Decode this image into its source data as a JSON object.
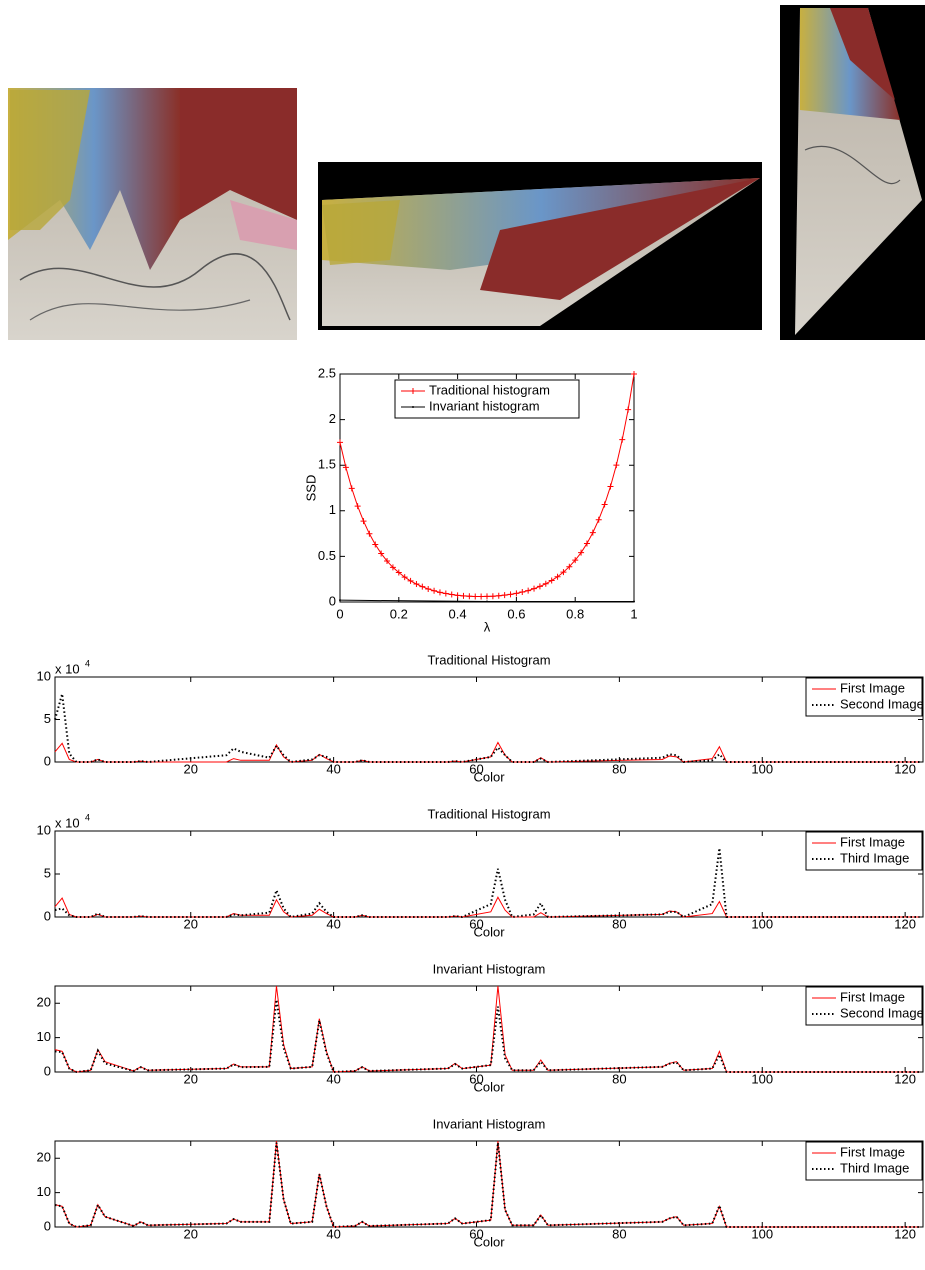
{
  "chart_data": [
    {
      "type": "line",
      "xlabel": "λ",
      "ylabel": "SSD",
      "legend": "upper center",
      "xlim": [
        0,
        1
      ],
      "ylim": [
        0,
        2.5
      ],
      "xticks": [
        0,
        0.2,
        0.4,
        0.6,
        0.8,
        1
      ],
      "yticks": [
        0,
        0.5,
        1,
        1.5,
        2,
        2.5
      ],
      "x": [
        0,
        0.02,
        0.04,
        0.06,
        0.08,
        0.1,
        0.12,
        0.14,
        0.16,
        0.18,
        0.2,
        0.22,
        0.24,
        0.26,
        0.28,
        0.3,
        0.32,
        0.34,
        0.36,
        0.38,
        0.4,
        0.42,
        0.44,
        0.46,
        0.48,
        0.5,
        0.52,
        0.54,
        0.56,
        0.58,
        0.6,
        0.62,
        0.64,
        0.66,
        0.68,
        0.7,
        0.72,
        0.74,
        0.76,
        0.78,
        0.8,
        0.82,
        0.84,
        0.86,
        0.88,
        0.9,
        0.92,
        0.94,
        0.96,
        0.98,
        1
      ],
      "series": [
        {
          "name": "Traditional histogram",
          "color": "#ff0000",
          "marker": "+",
          "linestyle": "-",
          "values": [
            1.75,
            1.476,
            1.246,
            1.051,
            0.887,
            0.748,
            0.631,
            0.532,
            0.449,
            0.379,
            0.323,
            0.273,
            0.231,
            0.197,
            0.168,
            0.143,
            0.123,
            0.106,
            0.093,
            0.082,
            0.073,
            0.067,
            0.063,
            0.06,
            0.06,
            0.061,
            0.063,
            0.068,
            0.075,
            0.084,
            0.095,
            0.109,
            0.125,
            0.146,
            0.171,
            0.2,
            0.236,
            0.277,
            0.328,
            0.387,
            0.459,
            0.541,
            0.642,
            0.761,
            0.902,
            1.069,
            1.267,
            1.501,
            1.78,
            2.109,
            2.5
          ]
        },
        {
          "name": "Invariant histogram",
          "color": "#000000",
          "marker": ".",
          "linestyle": "-",
          "x": [
            0,
            0.5,
            1
          ],
          "values": [
            0.02,
            0.005,
            0.005
          ]
        }
      ]
    },
    {
      "type": "line",
      "title": "Traditional Histogram",
      "xlabel": "Color",
      "legend": "upper right",
      "y_multiplier": "x 10",
      "y_multiplier_exponent": 4,
      "xlim": [
        1,
        122.5
      ],
      "ylim": [
        0,
        10
      ],
      "xticks": [
        20,
        40,
        60,
        80,
        100,
        120
      ],
      "yticks": [
        0,
        5,
        10
      ],
      "x": [
        1,
        2,
        3,
        4,
        6,
        7,
        8,
        12,
        13,
        14,
        25,
        26,
        27,
        31,
        32,
        33,
        34,
        37,
        38,
        39,
        40,
        43,
        44,
        45,
        56,
        57,
        58,
        62,
        63,
        64,
        65,
        68,
        69,
        70,
        86,
        87,
        88,
        89,
        93,
        94,
        95,
        122
      ],
      "series": [
        {
          "name": "First Image",
          "color": "#ff0000",
          "linestyle": "-",
          "values": [
            1.2,
            2.2,
            0.3,
            0,
            0,
            0.3,
            0,
            0,
            0.1,
            0,
            0,
            0.4,
            0.2,
            0.2,
            2.0,
            0.6,
            0,
            0.2,
            0.9,
            0.4,
            0,
            0,
            0.2,
            0,
            0,
            0.1,
            0,
            0.6,
            2.3,
            0.8,
            0,
            0,
            0.5,
            0,
            0.3,
            0.7,
            0.6,
            0,
            0.4,
            1.8,
            0,
            0
          ]
        },
        {
          "name": "Second Image",
          "color": "#000000",
          "linestyle": ":",
          "values": [
            5,
            8,
            1,
            0,
            0,
            0.3,
            0,
            0,
            0.1,
            0,
            0.8,
            1.6,
            1.2,
            0.5,
            1.9,
            0.8,
            0,
            0.3,
            0.8,
            0.6,
            0,
            0,
            0.2,
            0,
            0,
            0.1,
            0,
            0.6,
            1.7,
            0.8,
            0,
            0,
            0.4,
            0,
            0.5,
            0.9,
            0.8,
            0,
            0.2,
            0.9,
            0,
            0
          ]
        }
      ]
    },
    {
      "type": "line",
      "title": "Traditional Histogram",
      "xlabel": "Color",
      "legend": "upper right",
      "y_multiplier": "x 10",
      "y_multiplier_exponent": 4,
      "xlim": [
        1,
        122.5
      ],
      "ylim": [
        0,
        10
      ],
      "xticks": [
        20,
        40,
        60,
        80,
        100,
        120
      ],
      "yticks": [
        0,
        5,
        10
      ],
      "x": [
        1,
        2,
        3,
        4,
        6,
        7,
        8,
        12,
        13,
        14,
        25,
        26,
        27,
        31,
        32,
        33,
        34,
        37,
        38,
        39,
        40,
        43,
        44,
        45,
        56,
        57,
        58,
        62,
        63,
        64,
        65,
        68,
        69,
        70,
        86,
        87,
        88,
        89,
        93,
        94,
        95,
        122
      ],
      "series": [
        {
          "name": "First Image",
          "color": "#ff0000",
          "linestyle": "-",
          "values": [
            1.2,
            2.2,
            0.3,
            0,
            0,
            0.3,
            0,
            0,
            0.1,
            0,
            0,
            0.4,
            0.2,
            0.2,
            2.0,
            0.6,
            0,
            0.2,
            0.9,
            0.4,
            0,
            0,
            0.2,
            0,
            0,
            0.1,
            0,
            0.6,
            2.3,
            0.8,
            0,
            0,
            0.5,
            0,
            0.3,
            0.7,
            0.6,
            0,
            0.4,
            1.8,
            0,
            0
          ]
        },
        {
          "name": "Third Image",
          "color": "#000000",
          "linestyle": ":",
          "values": [
            0.8,
            1.0,
            0.2,
            0,
            0,
            0.4,
            0,
            0,
            0.1,
            0,
            0,
            0.3,
            0.2,
            0.5,
            3.1,
            1.0,
            0,
            0.4,
            1.6,
            0.6,
            0,
            0,
            0.2,
            0,
            0,
            0.1,
            0,
            1.5,
            5.6,
            2.0,
            0,
            0.3,
            1.6,
            0,
            0.3,
            0.6,
            0.6,
            0,
            1.5,
            8.0,
            0,
            0
          ]
        }
      ]
    },
    {
      "type": "line",
      "title": "Invariant Histogram",
      "xlabel": "Color",
      "legend": "upper right",
      "xlim": [
        1,
        122.5
      ],
      "ylim": [
        0,
        25
      ],
      "xticks": [
        20,
        40,
        60,
        80,
        100,
        120
      ],
      "yticks": [
        0,
        10,
        20
      ],
      "x": [
        1,
        2,
        3,
        4,
        6,
        7,
        8,
        12,
        13,
        14,
        25,
        26,
        27,
        31,
        32,
        33,
        34,
        37,
        38,
        39,
        40,
        43,
        44,
        45,
        56,
        57,
        58,
        62,
        63,
        64,
        65,
        68,
        69,
        70,
        86,
        87,
        88,
        89,
        93,
        94,
        95,
        122
      ],
      "series": [
        {
          "name": "First Image",
          "color": "#ff0000",
          "linestyle": "-",
          "values": [
            6.5,
            6,
            1,
            0,
            0.5,
            6.5,
            3,
            0.3,
            1.5,
            0.5,
            1,
            2.3,
            1.5,
            1.5,
            25,
            8,
            1,
            1.5,
            15.5,
            6,
            0,
            0.3,
            1.5,
            0.3,
            1,
            2.5,
            1,
            2,
            25,
            5,
            0.5,
            0.5,
            3.5,
            0.5,
            1.5,
            2.5,
            3,
            0.5,
            1,
            6,
            0,
            0
          ]
        },
        {
          "name": "Second Image",
          "color": "#000000",
          "linestyle": ":",
          "values": [
            6,
            5.8,
            1,
            0,
            0.5,
            6.2,
            2.5,
            0.3,
            1.4,
            0.5,
            1,
            2.2,
            1.4,
            1.5,
            21,
            7,
            1,
            1.5,
            15,
            5.5,
            0,
            0.3,
            1.4,
            0.3,
            1,
            2.3,
            1,
            2,
            19,
            4,
            0.5,
            0.5,
            3,
            0.5,
            1.5,
            2.4,
            2.8,
            0.5,
            1,
            5,
            0,
            0
          ]
        }
      ]
    },
    {
      "type": "line",
      "title": "Invariant Histogram",
      "xlabel": "Color",
      "legend": "upper right",
      "xlim": [
        1,
        122.5
      ],
      "ylim": [
        0,
        25
      ],
      "xticks": [
        20,
        40,
        60,
        80,
        100,
        120
      ],
      "yticks": [
        0,
        10,
        20
      ],
      "x": [
        1,
        2,
        3,
        4,
        6,
        7,
        8,
        12,
        13,
        14,
        25,
        26,
        27,
        31,
        32,
        33,
        34,
        37,
        38,
        39,
        40,
        43,
        44,
        45,
        56,
        57,
        58,
        62,
        63,
        64,
        65,
        68,
        69,
        70,
        86,
        87,
        88,
        89,
        93,
        94,
        95,
        122
      ],
      "series": [
        {
          "name": "First Image",
          "color": "#ff0000",
          "linestyle": "-",
          "values": [
            6.5,
            6,
            1,
            0,
            0.5,
            6.5,
            3,
            0.3,
            1.5,
            0.5,
            1,
            2.3,
            1.5,
            1.5,
            25,
            8,
            1,
            1.5,
            15.5,
            6,
            0,
            0.3,
            1.5,
            0.3,
            1,
            2.5,
            1,
            2,
            25,
            5,
            0.5,
            0.5,
            3.5,
            0.5,
            1.5,
            2.5,
            3,
            0.5,
            1,
            6,
            0,
            0
          ]
        },
        {
          "name": "Third Image",
          "color": "#000000",
          "linestyle": ":",
          "values": [
            6.4,
            6,
            1,
            0,
            0.5,
            6.4,
            3,
            0.3,
            1.5,
            0.5,
            1,
            2.3,
            1.5,
            1.5,
            24.5,
            8,
            1,
            1.5,
            15.3,
            6,
            0,
            0.3,
            1.5,
            0.3,
            1,
            2.5,
            1,
            2,
            24.5,
            5,
            0.5,
            0.5,
            3.4,
            0.5,
            1.5,
            2.5,
            3,
            0.5,
            1,
            6.2,
            0,
            0
          ]
        }
      ]
    }
  ]
}
